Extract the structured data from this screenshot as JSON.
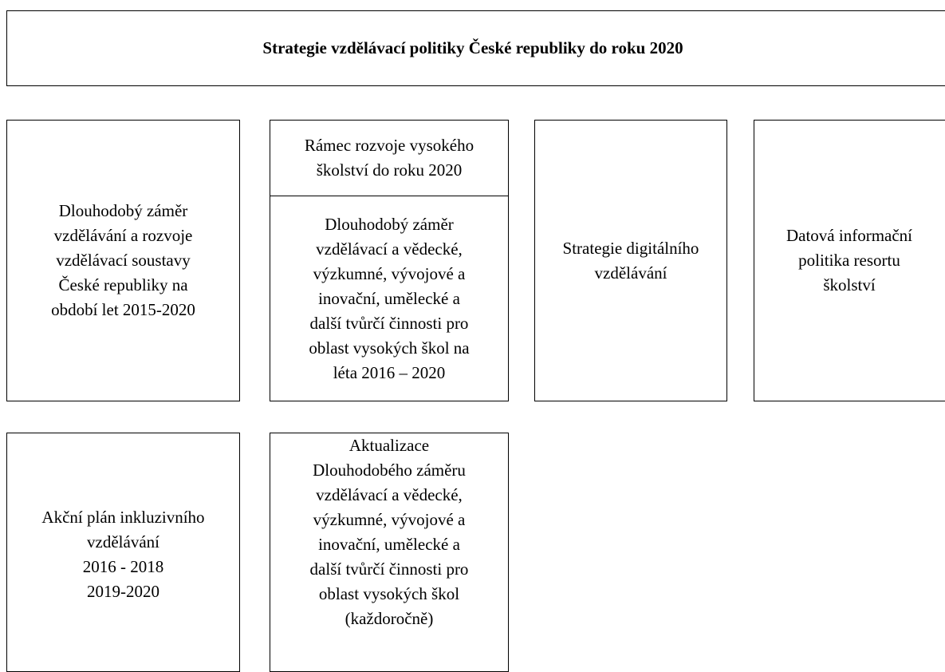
{
  "title": "Strategie vzdělávací politiky České republiky do roku 2020",
  "nodes": [
    {
      "lines": [
        "Dlouhodobý záměr",
        "vzdělávání a rozvoje",
        "vzdělávací soustavy",
        "České republiky na",
        "období let 2015-2020"
      ]
    },
    {
      "header_lines": [
        "Rámec rozvoje vysokého",
        "školství do roku 2020"
      ],
      "lines": [
        "Dlouhodobý záměr",
        "vzdělávací a vědecké,",
        "výzkumné, vývojové a",
        "inovační, umělecké a",
        "další tvůrčí činnosti pro",
        "oblast vysokých škol na",
        "léta 2016 – 2020"
      ]
    },
    {
      "lines": [
        "Strategie digitálního",
        "vzdělávání"
      ]
    },
    {
      "lines": [
        "Datová informační",
        "politika resortu",
        "školství"
      ]
    },
    {
      "lines": [
        "Akční plán inkluzivního",
        "vzdělávání",
        "2016 - 2018",
        "2019-2020"
      ]
    },
    {
      "lines": [
        "Aktualizace",
        "Dlouhodobého záměru",
        "vzdělávací a vědecké,",
        "výzkumné, vývojové a",
        "inovační, umělecké a",
        "další tvůrčí činnosti pro",
        "oblast vysokých škol",
        "(každoročně)"
      ]
    }
  ]
}
